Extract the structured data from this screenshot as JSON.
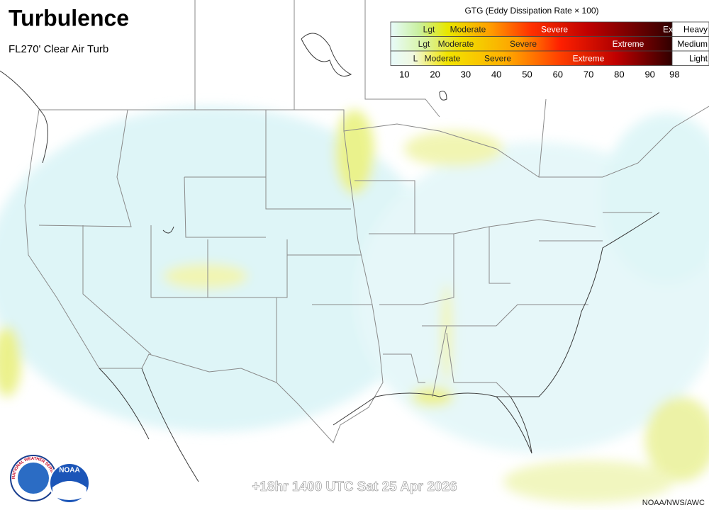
{
  "header": {
    "title": "Turbulence",
    "subtitle": "FL270' Clear Air Turb"
  },
  "legend": {
    "title": "GTG (Eddy Dissipation Rate × 100)",
    "rows": [
      {
        "labels": [
          "Lgt",
          "Moderate",
          "Severe",
          "Ex"
        ],
        "category": "Heavy"
      },
      {
        "labels": [
          "Lgt",
          "Moderate",
          "Severe",
          "Extreme"
        ],
        "category": "Medium"
      },
      {
        "labels": [
          "L",
          "Moderate",
          "Severe",
          "Extreme"
        ],
        "category": "Light"
      }
    ],
    "scale": [
      10,
      20,
      30,
      40,
      50,
      60,
      70,
      80,
      90,
      98
    ]
  },
  "valid_time": "+18hr 1400 UTC Sat 25 Apr 2026",
  "credit": "NOAA/NWS/AWC",
  "logos": {
    "nws": "NATIONAL WEATHER SERVICE",
    "noaa": "NOAA"
  }
}
